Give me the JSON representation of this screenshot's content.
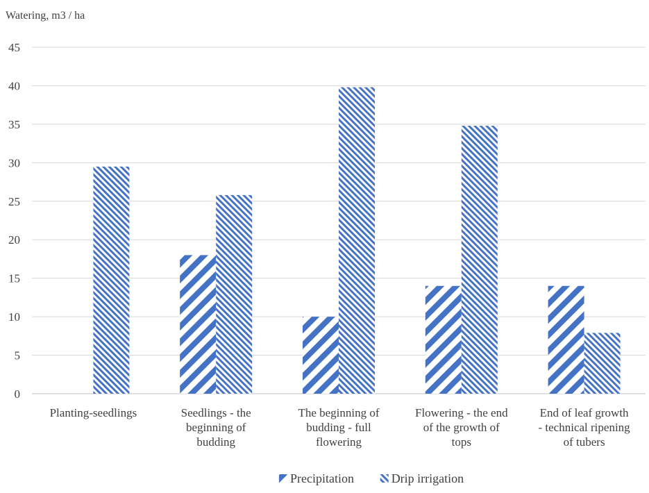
{
  "chart_data": {
    "type": "bar",
    "ylabel": "Watering, m3 / ha",
    "ylim": [
      0,
      45
    ],
    "yticks": [
      0,
      5,
      10,
      15,
      20,
      25,
      30,
      35,
      40,
      45
    ],
    "categories": [
      [
        "Planting-seedlings"
      ],
      [
        "Seedlings - the",
        "beginning of",
        "budding"
      ],
      [
        "The beginning of",
        "budding - full",
        "flowering"
      ],
      [
        "Flowering - the end",
        "of the growth of",
        "tops"
      ],
      [
        "End of leaf growth",
        "- technical ripening",
        "of tubers"
      ]
    ],
    "series": [
      {
        "name": "Precipitation",
        "values": [
          0,
          18,
          10,
          14,
          14
        ],
        "color": "#4472c4",
        "pattern": "wide-diagonal"
      },
      {
        "name": "Drip irrigation",
        "values": [
          29.5,
          25.8,
          39.8,
          34.8,
          7.9
        ],
        "color": "#4472c4",
        "pattern": "narrow-diagonal"
      }
    ],
    "grid": true,
    "legend_position": "bottom"
  }
}
